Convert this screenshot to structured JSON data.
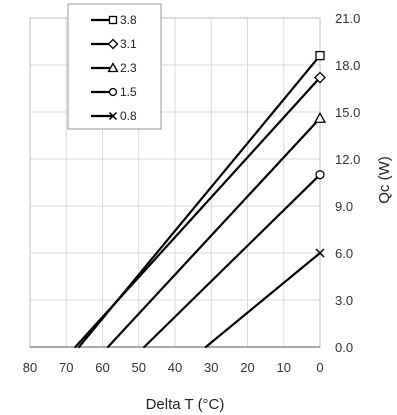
{
  "chart_data": {
    "type": "line",
    "xlabel": "Delta T (°C)",
    "ylabel": "Qc (W)",
    "xlim": [
      80,
      0
    ],
    "ylim": [
      0,
      21
    ],
    "x_reversed": true,
    "x_ticks": [
      "80",
      "70",
      "60",
      "50",
      "40",
      "30",
      "20",
      "10",
      "0"
    ],
    "y_ticks": [
      "0.0",
      "3.0",
      "6.0",
      "9.0",
      "12.0",
      "15.0",
      "18.0",
      "21.0"
    ],
    "y_axis_position": "right",
    "grid": true,
    "legend_position": "top-left",
    "line_color": "#000000",
    "series": [
      {
        "name": "3.8",
        "marker": "square",
        "points": [
          {
            "x": 66.5,
            "y": 0.0
          },
          {
            "x": 0,
            "y": 18.6
          }
        ]
      },
      {
        "name": "3.1",
        "marker": "diamond",
        "points": [
          {
            "x": 67.5,
            "y": 0.0
          },
          {
            "x": 0,
            "y": 17.2
          }
        ]
      },
      {
        "name": "2.3",
        "marker": "triangle",
        "points": [
          {
            "x": 58.5,
            "y": 0.0
          },
          {
            "x": 0,
            "y": 14.6
          }
        ]
      },
      {
        "name": "1.5",
        "marker": "circle",
        "points": [
          {
            "x": 48.5,
            "y": 0.0
          },
          {
            "x": 0,
            "y": 11.0
          }
        ]
      },
      {
        "name": "0.8",
        "marker": "x",
        "points": [
          {
            "x": 31.5,
            "y": 0.0
          },
          {
            "x": 0,
            "y": 6.0
          }
        ]
      }
    ]
  }
}
